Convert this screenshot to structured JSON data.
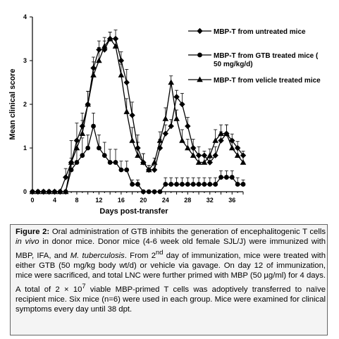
{
  "chart_data": {
    "type": "line",
    "xlabel": "Days post-transfer",
    "ylabel": "Mean clinical score",
    "xlim": [
      0,
      38
    ],
    "ylim": [
      0,
      4
    ],
    "xticks": [
      0,
      4,
      8,
      12,
      16,
      20,
      24,
      28,
      32,
      36
    ],
    "yticks": [
      0,
      1,
      2,
      3,
      4
    ],
    "grid": false,
    "legend_position": "top-right",
    "x": [
      0,
      1,
      2,
      3,
      4,
      5,
      6,
      7,
      8,
      9,
      10,
      11,
      12,
      13,
      14,
      15,
      16,
      17,
      18,
      19,
      20,
      21,
      22,
      23,
      24,
      25,
      26,
      27,
      28,
      29,
      30,
      31,
      32,
      33,
      34,
      35,
      36,
      37,
      38
    ],
    "series": [
      {
        "name": "MBP-T from untreated mice",
        "marker": "diamond",
        "values": [
          0,
          0,
          0,
          0,
          0,
          0,
          0.33,
          0.67,
          1.17,
          1.5,
          2.0,
          2.83,
          3.25,
          3.25,
          3.5,
          3.5,
          3.0,
          2.5,
          1.75,
          1.0,
          0.67,
          0.5,
          0.5,
          1.0,
          1.33,
          1.5,
          2.17,
          2.0,
          1.5,
          1.0,
          0.83,
          0.83,
          0.67,
          0.83,
          1.17,
          1.33,
          1.17,
          1.0,
          0.83
        ],
        "errors": [
          0,
          0,
          0,
          0,
          0,
          0,
          0.2,
          0.5,
          0.4,
          0.3,
          0.3,
          0.25,
          0.2,
          0.2,
          0.15,
          0.2,
          0.2,
          0.3,
          0.3,
          0.3,
          0.2,
          0.1,
          0.1,
          0.2,
          0.2,
          0.15,
          0.15,
          0.25,
          0.2,
          0.2,
          0.2,
          0.1,
          0.1,
          0.2,
          0.2,
          0.2,
          0.15,
          0.15,
          0.1
        ]
      },
      {
        "name": "MBP-T from GTB treated mice ( 50 mg/kg/d)",
        "marker": "circle",
        "values": [
          0,
          0,
          0,
          0,
          0,
          0,
          0,
          0.5,
          0.67,
          0.83,
          1.0,
          1.5,
          1.0,
          0.83,
          0.67,
          0.67,
          0.5,
          0.5,
          0.17,
          0.17,
          0,
          0,
          0,
          0,
          0.17,
          0.17,
          0.17,
          0.17,
          0.17,
          0.17,
          0.17,
          0.17,
          0.17,
          0.17,
          0.33,
          0.33,
          0.33,
          0.17,
          0.17
        ],
        "errors": [
          0,
          0,
          0,
          0,
          0,
          0,
          0,
          0.2,
          0.5,
          0.4,
          0.3,
          0.3,
          0.3,
          0.3,
          0.3,
          0.3,
          0.2,
          0.2,
          0.1,
          0.1,
          0,
          0,
          0,
          0,
          0.15,
          0.15,
          0.15,
          0.15,
          0.15,
          0.15,
          0.15,
          0.15,
          0.15,
          0.15,
          0.15,
          0.15,
          0.15,
          0.15,
          0.1
        ]
      },
      {
        "name": "MBP-T from velicle treated mice",
        "marker": "triangle",
        "values": [
          0,
          0,
          0,
          0,
          0,
          0,
          0,
          0.67,
          1.0,
          1.33,
          2.0,
          2.67,
          3.0,
          3.33,
          3.5,
          3.33,
          2.67,
          1.83,
          1.17,
          0.83,
          0.67,
          0.5,
          0.67,
          1.17,
          1.67,
          2.5,
          1.67,
          1.17,
          1.0,
          0.83,
          0.67,
          0.67,
          0.83,
          1.17,
          1.33,
          1.33,
          1.0,
          0.83,
          0.67
        ],
        "errors": [
          0,
          0,
          0,
          0,
          0,
          0,
          0,
          0.1,
          0.2,
          0.3,
          0.3,
          0.3,
          0.3,
          0.2,
          0.15,
          0.2,
          0.25,
          0.3,
          0.3,
          0.3,
          0.2,
          0.1,
          0.1,
          0.2,
          0.25,
          0.15,
          0.2,
          0.25,
          0.2,
          0.15,
          0.15,
          0.15,
          0.15,
          0.25,
          0.2,
          0.2,
          0.2,
          0.2,
          0.15
        ]
      }
    ]
  },
  "caption": {
    "label": "Figure 2:",
    "text1": " Oral administration of GTB inhibits the generation of encephalitogenic T cells ",
    "italic1": "in vivo",
    "text2": " in donor mice. Donor mice (4-6 week old female SJL/J) were immunized with MBP, IFA, and ",
    "italic2": "M. tuberculosis",
    "text3": ". From 2",
    "sup1": "nd",
    "text4": " day of immunization, mice were treated with either GTB (50 mg/kg body wt/d) or vehicle via gavage. On day 12 of immunization, mice were sacrificed, and total LNC were further primed with MBP (50 µg/ml) for 4 days. A total of 2 × 10",
    "sup2": "7",
    "text5": " viable MBP-primed T cells was adoptively transferred to naïve recipient mice. Six mice (n=6) were used in each group. Mice were examined for clinical symptoms every day until 38 dpt."
  }
}
